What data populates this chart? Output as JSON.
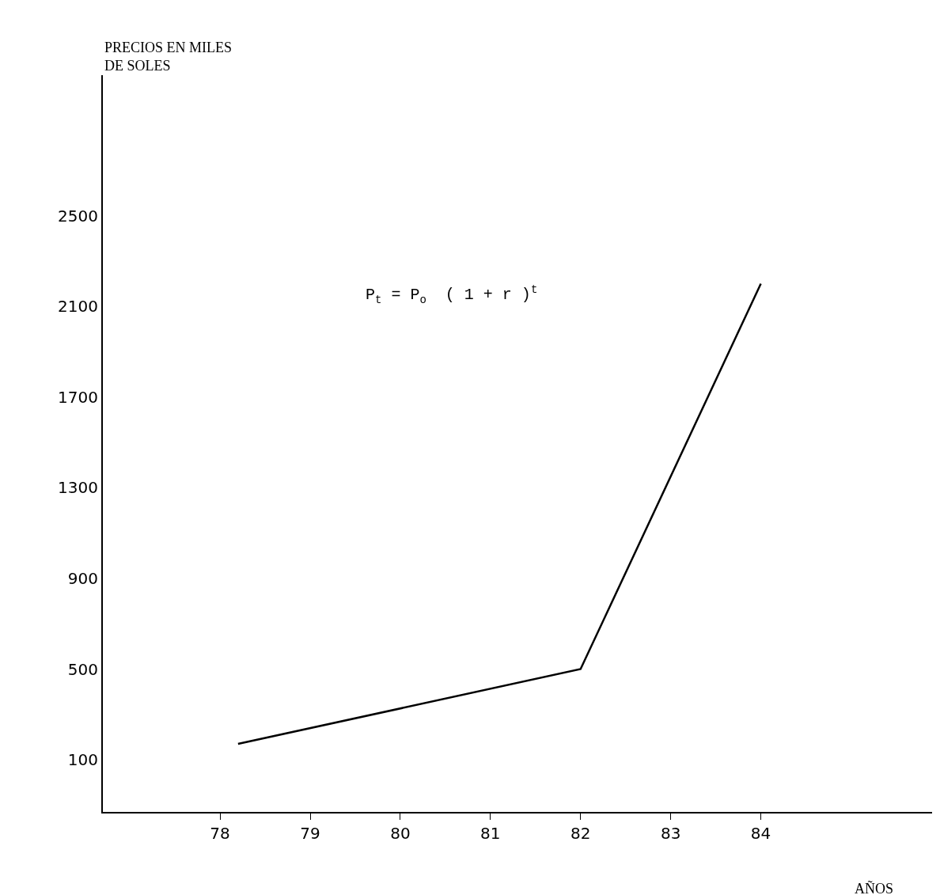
{
  "chart_data": {
    "type": "line",
    "ylabel": "PRECIOS EN MILES\nDE SOLES",
    "xlabel": "AÑOS",
    "annotations": [
      "P$_{t}$ = P$_{o}$  ( 1 + r )$^{t}$"
    ],
    "x": [
      78.2,
      82,
      84
    ],
    "series": [
      {
        "color": "#000000",
        "values": [
          170,
          500,
          2200
        ]
      }
    ],
    "xlim": [
      76.7,
      85.9
    ],
    "xticks": [
      78,
      79,
      80,
      81,
      82,
      83,
      84
    ],
    "ylim": [
      -130,
      3120
    ],
    "yticks": [
      100,
      500,
      900,
      1300,
      1700,
      2100,
      2500
    ],
    "marker": "none",
    "line_style": "solid"
  }
}
